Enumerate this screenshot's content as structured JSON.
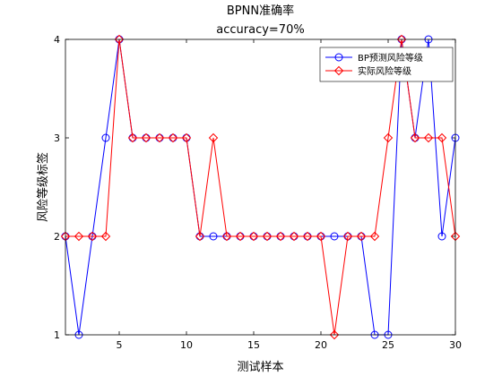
{
  "chart_data": {
    "type": "line",
    "title": "BPNN准确率",
    "subtitle": "accuracy=70%",
    "xlabel": "测试样本",
    "ylabel": "风险等级标签",
    "xlim": [
      1,
      30
    ],
    "ylim": [
      1,
      4
    ],
    "xticks": [
      5,
      10,
      15,
      20,
      25,
      30
    ],
    "yticks": [
      1,
      2,
      3,
      4
    ],
    "grid": false,
    "legend_position": "top-right",
    "x": [
      1,
      2,
      3,
      4,
      5,
      6,
      7,
      8,
      9,
      10,
      11,
      12,
      13,
      14,
      15,
      16,
      17,
      18,
      19,
      20,
      21,
      22,
      23,
      24,
      25,
      26,
      27,
      28,
      29,
      30
    ],
    "series": [
      {
        "name": "BP预测风险等级",
        "color": "#0000ff",
        "marker": "circle",
        "values": [
          2,
          1,
          2,
          3,
          4,
          3,
          3,
          3,
          3,
          3,
          2,
          2,
          2,
          2,
          2,
          2,
          2,
          2,
          2,
          2,
          2,
          2,
          2,
          1,
          1,
          4,
          3,
          4,
          2,
          3
        ]
      },
      {
        "name": "实际风险等级",
        "color": "#ff0000",
        "marker": "diamond",
        "values": [
          2,
          2,
          2,
          2,
          4,
          3,
          3,
          3,
          3,
          3,
          2,
          3,
          2,
          2,
          2,
          2,
          2,
          2,
          2,
          2,
          1,
          2,
          2,
          2,
          3,
          4,
          3,
          3,
          3,
          2
        ]
      }
    ]
  }
}
